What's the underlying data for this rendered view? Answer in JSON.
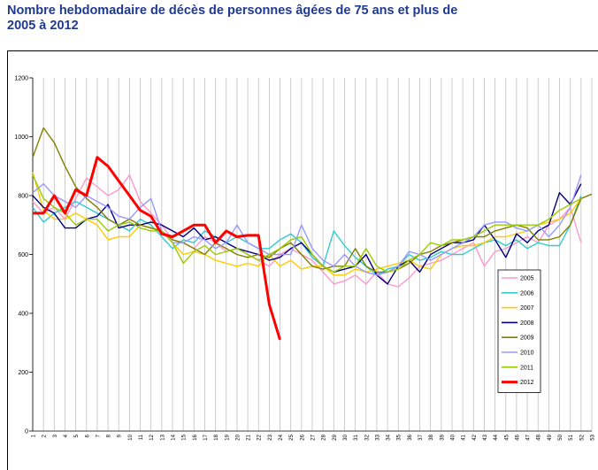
{
  "chart_data": {
    "type": "line",
    "title": [
      "Nombre hebdomadaire de décès de personnes âgées de 75 ans et plus de",
      "2005 à 2012"
    ],
    "categories": [
      "1",
      "2",
      "3",
      "4",
      "5",
      "6",
      "7",
      "8",
      "9",
      "10",
      "11",
      "12",
      "13",
      "14",
      "15",
      "16",
      "17",
      "18",
      "19",
      "20",
      "21",
      "22",
      "23",
      "24",
      "25",
      "26",
      "27",
      "28",
      "29",
      "30",
      "31",
      "32",
      "33",
      "34",
      "35",
      "36",
      "37",
      "38",
      "39",
      "40",
      "41",
      "42",
      "43",
      "44",
      "45",
      "46",
      "47",
      "48",
      "49",
      "50",
      "51",
      "52",
      "53"
    ],
    "ylim": [
      0,
      1200
    ],
    "yticks": [
      0,
      200,
      400,
      600,
      800,
      1000,
      1200
    ],
    "grid": true,
    "legend": "right",
    "series": [
      {
        "name": "2005",
        "color": "#ff99cc",
        "values": [
          780,
          740,
          760,
          720,
          790,
          860,
          830,
          800,
          820,
          870,
          780,
          740,
          700,
          650,
          640,
          620,
          660,
          640,
          610,
          620,
          600,
          580,
          560,
          600,
          620,
          600,
          580,
          540,
          500,
          510,
          530,
          500,
          540,
          500,
          490,
          520,
          560,
          570,
          580,
          600,
          620,
          640,
          560,
          610,
          620,
          640,
          660,
          640,
          700,
          720,
          760,
          640,
          null
        ]
      },
      {
        "name": "2006",
        "color": "#33cccc",
        "values": [
          760,
          710,
          740,
          760,
          780,
          760,
          740,
          720,
          700,
          680,
          720,
          700,
          660,
          620,
          650,
          640,
          680,
          660,
          640,
          660,
          640,
          620,
          620,
          650,
          670,
          640,
          590,
          560,
          680,
          630,
          590,
          560,
          530,
          550,
          560,
          600,
          580,
          590,
          610,
          600,
          600,
          620,
          640,
          650,
          630,
          650,
          620,
          640,
          630,
          630,
          700,
          800,
          null
        ]
      },
      {
        "name": "2007",
        "color": "#ffcc00",
        "values": [
          880,
          750,
          720,
          720,
          740,
          720,
          700,
          650,
          660,
          660,
          700,
          690,
          680,
          640,
          600,
          610,
          600,
          580,
          570,
          560,
          570,
          560,
          600,
          560,
          580,
          550,
          560,
          560,
          530,
          530,
          550,
          540,
          550,
          560,
          570,
          580,
          560,
          550,
          600,
          620,
          630,
          630,
          640,
          660,
          660,
          670,
          680,
          700,
          710,
          720,
          740,
          790,
          null
        ]
      },
      {
        "name": "2008",
        "color": "#000080",
        "values": [
          800,
          760,
          740,
          690,
          690,
          720,
          730,
          770,
          690,
          700,
          700,
          710,
          700,
          680,
          660,
          690,
          650,
          660,
          640,
          620,
          610,
          600,
          580,
          590,
          620,
          640,
          600,
          560,
          540,
          550,
          560,
          600,
          530,
          500,
          560,
          580,
          540,
          600,
          620,
          640,
          640,
          650,
          700,
          650,
          590,
          670,
          640,
          680,
          700,
          810,
          770,
          840,
          null
        ]
      },
      {
        "name": "2009",
        "color": "#808000",
        "values": [
          930,
          1030,
          980,
          900,
          830,
          790,
          760,
          720,
          700,
          720,
          700,
          690,
          680,
          650,
          640,
          620,
          600,
          640,
          620,
          600,
          590,
          600,
          590,
          620,
          640,
          600,
          560,
          550,
          560,
          560,
          620,
          560,
          540,
          540,
          550,
          570,
          600,
          610,
          630,
          640,
          650,
          660,
          660,
          680,
          690,
          700,
          690,
          650,
          650,
          660,
          700,
          790,
          805
        ]
      },
      {
        "name": "2010",
        "color": "#9999ff",
        "values": [
          810,
          840,
          800,
          780,
          760,
          800,
          780,
          760,
          730,
          720,
          760,
          790,
          680,
          640,
          640,
          660,
          650,
          620,
          640,
          700,
          640,
          620,
          600,
          600,
          600,
          700,
          620,
          580,
          560,
          600,
          560,
          540,
          530,
          540,
          560,
          610,
          600,
          580,
          600,
          620,
          640,
          660,
          700,
          710,
          710,
          690,
          680,
          700,
          660,
          700,
          760,
          870,
          null
        ]
      },
      {
        "name": "2011",
        "color": "#99cc00",
        "values": [
          870,
          790,
          760,
          740,
          700,
          720,
          720,
          680,
          700,
          710,
          690,
          680,
          680,
          640,
          570,
          610,
          630,
          600,
          610,
          620,
          600,
          580,
          600,
          620,
          650,
          660,
          600,
          560,
          540,
          560,
          560,
          620,
          560,
          540,
          550,
          580,
          600,
          640,
          630,
          650,
          650,
          660,
          680,
          700,
          700,
          700,
          700,
          700,
          720,
          750,
          770,
          790,
          null
        ]
      },
      {
        "name": "2012",
        "color": "#ff0000",
        "values": [
          740,
          740,
          800,
          740,
          820,
          800,
          930,
          900,
          850,
          800,
          750,
          730,
          670,
          660,
          680,
          700,
          700,
          640,
          680,
          660,
          665,
          665,
          430,
          310,
          null,
          null,
          null,
          null,
          null,
          null,
          null,
          null,
          null,
          null,
          null,
          null,
          null,
          null,
          null,
          null,
          null,
          null,
          null,
          null,
          null,
          null,
          null,
          null,
          null,
          null,
          null,
          null,
          null
        ]
      }
    ]
  }
}
